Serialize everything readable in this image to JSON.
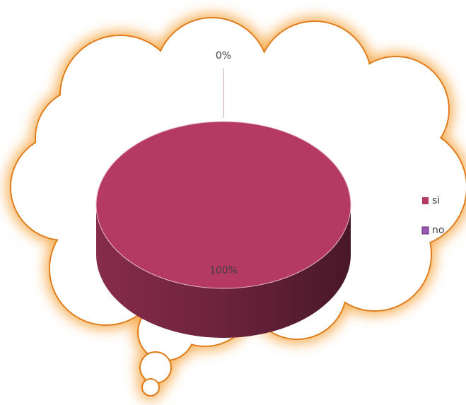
{
  "chart_data": {
    "type": "pie3d",
    "categories": [
      "si",
      "no"
    ],
    "values": [
      100,
      0
    ],
    "value_labels": [
      "100%",
      "0%"
    ],
    "colors": [
      "#b43a64",
      "#9b59b6"
    ],
    "legend": "right"
  }
}
